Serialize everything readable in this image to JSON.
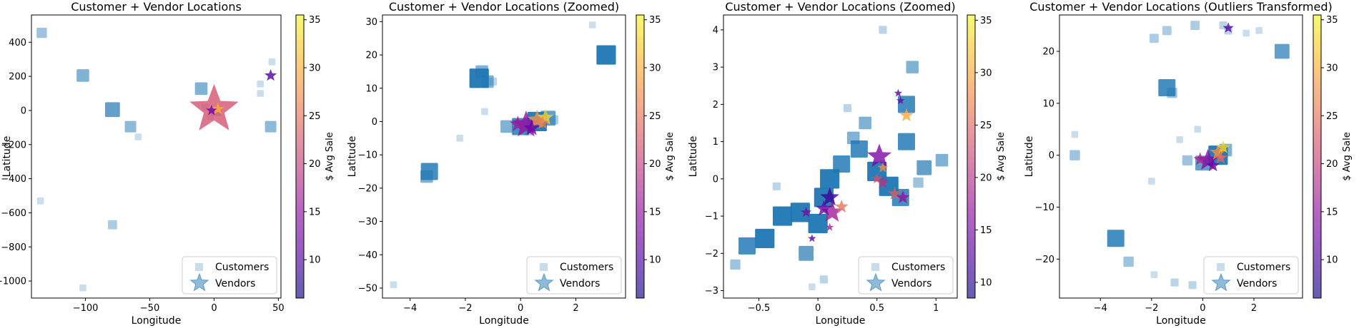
{
  "chart_data": [
    {
      "type": "scatter",
      "title": "Customer + Vendor Locations",
      "xlabel": "Longitude",
      "ylabel": "Latitude",
      "xlim": [
        -142,
        52
      ],
      "ylim": [
        -1100,
        560
      ],
      "xticks": [
        -100,
        -50,
        0,
        50
      ],
      "yticks": [
        -1000,
        -800,
        -600,
        -400,
        -200,
        0,
        200,
        400
      ],
      "legend": {
        "position": "lower-right",
        "labels": [
          "Customers",
          "Vendors"
        ]
      },
      "customers": [
        [
          -134,
          455,
          4
        ],
        [
          -102,
          205,
          6
        ],
        [
          -79,
          5,
          8
        ],
        [
          -65,
          -95,
          5
        ],
        [
          -59,
          -155,
          1
        ],
        [
          -10,
          128,
          6
        ],
        [
          -135,
          -530,
          1
        ],
        [
          -102,
          -1040,
          1
        ],
        [
          -79,
          -670,
          3
        ],
        [
          44,
          -95,
          5
        ],
        [
          45,
          285,
          1
        ],
        [
          36,
          155,
          1
        ],
        [
          36,
          100,
          1
        ],
        [
          2,
          -5,
          3
        ],
        [
          -3,
          -35,
          1
        ],
        [
          -7,
          20,
          1
        ]
      ],
      "vendors": [
        [
          0,
          5,
          36,
          22
        ],
        [
          44,
          205,
          9,
          10
        ],
        [
          3,
          8,
          9,
          30
        ],
        [
          -2,
          0,
          8,
          12
        ]
      ],
      "colorbar": {
        "label": "$ Avg Sale",
        "min": 6,
        "max": 35.5,
        "ticks": [
          10,
          15,
          20,
          25,
          30,
          35
        ]
      }
    },
    {
      "type": "scatter",
      "title": "Customer + Vendor Locations (Zoomed)",
      "xlabel": "Longitude",
      "ylabel": "Latitude",
      "xlim": [
        -5,
        3.8
      ],
      "ylim": [
        -53,
        32
      ],
      "xticks": [
        -4,
        -2,
        0,
        2
      ],
      "yticks": [
        -50,
        -40,
        -30,
        -20,
        -10,
        0,
        10,
        20,
        30
      ],
      "legend": {
        "position": "lower-right",
        "labels": [
          "Customers",
          "Vendors"
        ]
      },
      "customers": [
        [
          -1.5,
          13,
          12
        ],
        [
          -1.2,
          12,
          6
        ],
        [
          -1.4,
          15,
          6
        ],
        [
          3.1,
          20,
          12
        ],
        [
          2.6,
          29,
          1
        ],
        [
          -3.3,
          -15,
          10
        ],
        [
          -3.4,
          -16.5,
          6
        ],
        [
          0.6,
          0,
          16
        ],
        [
          0,
          -1.5,
          10
        ],
        [
          1.0,
          1,
          8
        ],
        [
          -0.5,
          -1.5,
          6
        ],
        [
          -1.0,
          12,
          2
        ],
        [
          -2.2,
          -5,
          1
        ],
        [
          -1.3,
          3,
          1
        ],
        [
          -4.6,
          -49,
          1
        ],
        [
          1.2,
          0.5,
          3
        ],
        [
          0.3,
          -3,
          2
        ]
      ],
      "vendors": [
        [
          0.2,
          -1,
          20,
          15
        ],
        [
          0.6,
          0.5,
          14,
          28
        ],
        [
          0.9,
          1.2,
          12,
          33
        ],
        [
          0.4,
          -2,
          12,
          12
        ],
        [
          0.8,
          -0.5,
          10,
          26
        ],
        [
          -0.1,
          -0.8,
          12,
          16
        ]
      ],
      "colorbar": {
        "label": "$ Avg Sale",
        "min": 6,
        "max": 35.5,
        "ticks": [
          10,
          15,
          20,
          25,
          30,
          35
        ]
      }
    },
    {
      "type": "scatter",
      "title": "Customer + Vendor Locations (Zoomed)",
      "xlabel": "Longitude",
      "ylabel": "Latitude",
      "xlim": [
        -0.8,
        1.18
      ],
      "ylim": [
        -3.2,
        4.4
      ],
      "xticks": [
        -0.5,
        0.0,
        0.5,
        1.0
      ],
      "yticks": [
        -3,
        -2,
        -1,
        0,
        1,
        2,
        3,
        4
      ],
      "legend": {
        "position": "lower-right",
        "labels": [
          "Customers",
          "Vendors"
        ]
      },
      "customers": [
        [
          -0.6,
          -1.8,
          10
        ],
        [
          -0.45,
          -1.6,
          12
        ],
        [
          -0.3,
          -1.0,
          12
        ],
        [
          -0.15,
          -0.9,
          12
        ],
        [
          0.0,
          -1.2,
          12
        ],
        [
          0.05,
          -0.5,
          12
        ],
        [
          0.1,
          0.0,
          12
        ],
        [
          0.2,
          0.4,
          10
        ],
        [
          0.35,
          0.8,
          10
        ],
        [
          0.5,
          0.2,
          12
        ],
        [
          0.6,
          -0.2,
          12
        ],
        [
          0.7,
          -0.5,
          10
        ],
        [
          0.75,
          1.0,
          10
        ],
        [
          0.75,
          2.0,
          10
        ],
        [
          0.8,
          3.0,
          6
        ],
        [
          0.9,
          0.3,
          8
        ],
        [
          1.05,
          0.5,
          6
        ],
        [
          0.4,
          1.5,
          6
        ],
        [
          0.3,
          1.1,
          6
        ],
        [
          -0.1,
          -2.0,
          8
        ],
        [
          -0.7,
          -2.3,
          4
        ],
        [
          0.05,
          -2.7,
          2
        ],
        [
          -0.05,
          -2.9,
          1
        ],
        [
          0.55,
          4.0,
          2
        ],
        [
          0.25,
          1.9,
          2
        ],
        [
          -0.35,
          -0.2,
          2
        ],
        [
          0.85,
          -0.1,
          4
        ]
      ],
      "vendors": [
        [
          0.52,
          0.6,
          18,
          15
        ],
        [
          0.1,
          -0.5,
          14,
          11
        ],
        [
          0.12,
          -0.9,
          16,
          18
        ],
        [
          0.05,
          -0.8,
          12,
          14
        ],
        [
          0.2,
          -0.75,
          10,
          26
        ],
        [
          0.75,
          1.7,
          10,
          30
        ],
        [
          0.68,
          2.3,
          6,
          12
        ],
        [
          0.55,
          0.3,
          8,
          28
        ],
        [
          0.55,
          -0.1,
          10,
          20
        ],
        [
          0.65,
          -0.4,
          10,
          24
        ],
        [
          0.72,
          -0.5,
          10,
          17
        ],
        [
          -0.1,
          -0.9,
          8,
          15
        ],
        [
          -0.05,
          -1.6,
          6,
          12
        ],
        [
          0.1,
          -1.3,
          6,
          18
        ],
        [
          0.5,
          0.0,
          8,
          23
        ],
        [
          0.7,
          2.1,
          6,
          14
        ]
      ],
      "colorbar": {
        "label": "$ Avg Sale",
        "min": 8.5,
        "max": 35.5,
        "ticks": [
          10,
          15,
          20,
          25,
          30,
          35
        ]
      }
    },
    {
      "type": "scatter",
      "title": "Customer + Vendor Locations (Outliers Transformed)",
      "xlabel": "Longitude",
      "ylabel": "Latitude",
      "xlim": [
        -5.6,
        3.9
      ],
      "ylim": [
        -27.5,
        27
      ],
      "xticks": [
        -4,
        -2,
        0,
        2
      ],
      "yticks": [
        -20,
        -10,
        0,
        10,
        20
      ],
      "legend": {
        "position": "lower-right",
        "labels": [
          "Customers",
          "Vendors"
        ]
      },
      "customers": [
        [
          -5.0,
          0,
          4
        ],
        [
          -5.0,
          4,
          1
        ],
        [
          -1.4,
          13,
          10
        ],
        [
          -1.2,
          12,
          4
        ],
        [
          3.1,
          20,
          8
        ],
        [
          2.2,
          24,
          1
        ],
        [
          1.7,
          23.5,
          1
        ],
        [
          0.8,
          25,
          2
        ],
        [
          -0.3,
          25,
          3
        ],
        [
          -1.9,
          22.5,
          3
        ],
        [
          -1.4,
          24,
          3
        ],
        [
          -3.4,
          -16,
          10
        ],
        [
          -2.9,
          -20.5,
          4
        ],
        [
          -1.9,
          -23,
          1
        ],
        [
          -1.1,
          -24.5,
          2
        ],
        [
          -0.4,
          -25,
          2
        ],
        [
          1.1,
          -24.5,
          1
        ],
        [
          0.6,
          0,
          14
        ],
        [
          0.0,
          -1.5,
          8
        ],
        [
          -0.6,
          -1,
          4
        ],
        [
          0.9,
          1,
          6
        ],
        [
          -0.9,
          3,
          1
        ],
        [
          -2.0,
          -5,
          1
        ],
        [
          -0.2,
          5,
          1
        ],
        [
          1.0,
          24,
          2
        ]
      ],
      "vendors": [
        [
          0.2,
          -1,
          16,
          14
        ],
        [
          0.6,
          0.5,
          12,
          28
        ],
        [
          0.8,
          1.5,
          10,
          33
        ],
        [
          0.4,
          -2,
          10,
          12
        ],
        [
          0.7,
          -0.5,
          10,
          24
        ],
        [
          1.0,
          24.5,
          8,
          10
        ],
        [
          -0.1,
          -0.8,
          10,
          17
        ]
      ],
      "colorbar": {
        "label": "$ Avg Sale",
        "min": 6,
        "max": 35.5,
        "ticks": [
          10,
          15,
          20,
          25,
          30,
          35
        ]
      }
    }
  ]
}
